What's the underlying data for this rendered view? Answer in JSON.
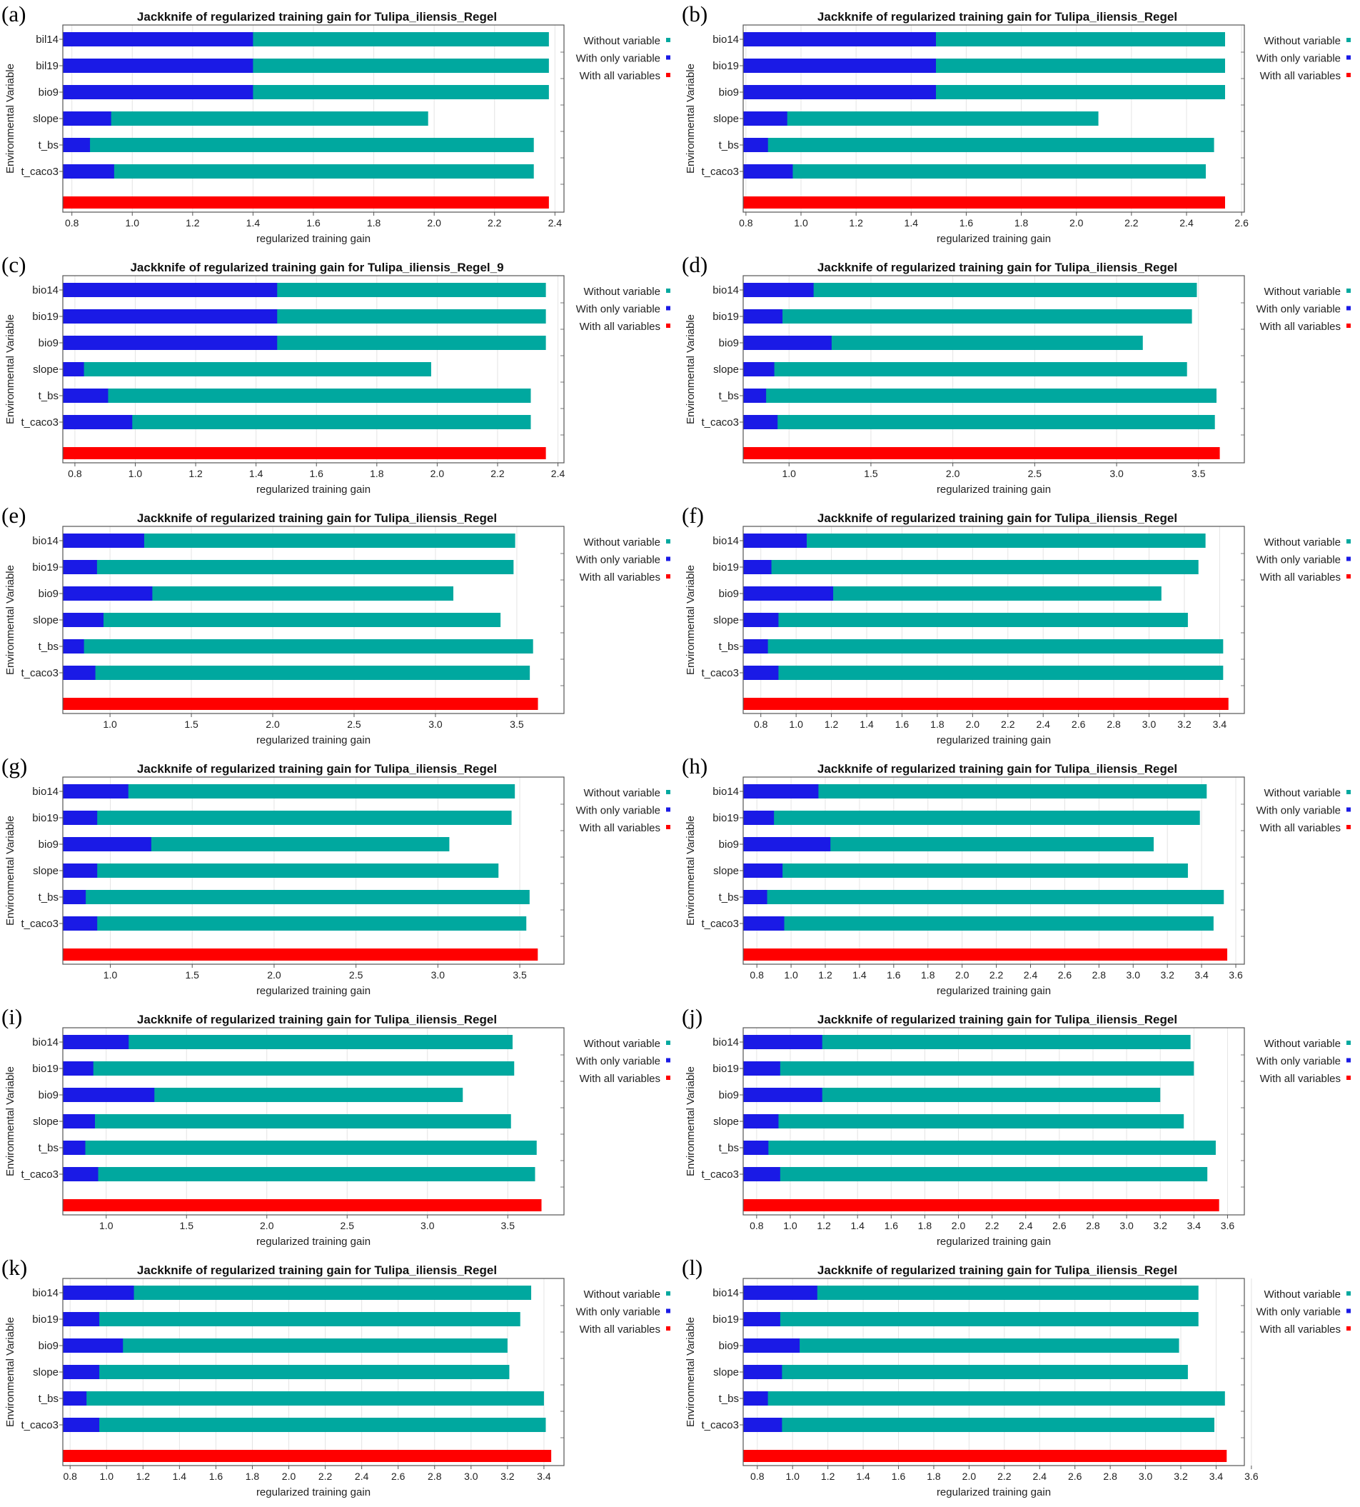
{
  "colors": {
    "without": "#00A89F",
    "only": "#1A1AE6",
    "all": "#FF0000",
    "frame": "#555555",
    "grid": "#E4E4E4"
  },
  "chart_data": [
    {
      "type": "bar",
      "panel_label": "(a)",
      "title": "Jackknife of regularized training gain for Tulipa_iliensis_Regel",
      "xlabel": "regularized training gain",
      "ylabel": "Environmental Variable",
      "categories": [
        "bil14",
        "bil19",
        "bio9",
        "slope",
        "t_bs",
        "t_caco3"
      ],
      "series": [
        {
          "name": "Without variable",
          "values": [
            2.38,
            2.38,
            2.38,
            1.98,
            2.33,
            2.33
          ]
        },
        {
          "name": "With only variable",
          "values": [
            1.4,
            1.4,
            1.4,
            0.93,
            0.86,
            0.94
          ]
        }
      ],
      "all_variables": 2.38,
      "xlim": [
        0.77,
        2.43
      ],
      "xticks": [
        "0.8",
        "1.0",
        "1.2",
        "1.4",
        "1.6",
        "1.8",
        "2.0",
        "2.2",
        "2.4"
      ],
      "legend": [
        "Without variable",
        "With only variable",
        "With all variables"
      ]
    },
    {
      "type": "bar",
      "panel_label": "(b)",
      "title": "Jackknife of regularized training gain for Tulipa_iliensis_Regel",
      "xlabel": "regularized training gain",
      "ylabel": "Environmental Variable",
      "categories": [
        "bio14",
        "bio19",
        "bio9",
        "slope",
        "t_bs",
        "t_caco3"
      ],
      "series": [
        {
          "name": "Without variable",
          "values": [
            2.54,
            2.54,
            2.54,
            2.08,
            2.5,
            2.47
          ]
        },
        {
          "name": "With only variable",
          "values": [
            1.49,
            1.49,
            1.49,
            0.95,
            0.88,
            0.97
          ]
        }
      ],
      "all_variables": 2.54,
      "xlim": [
        0.79,
        2.61
      ],
      "xticks": [
        "0.8",
        "1.0",
        "1.2",
        "1.4",
        "1.6",
        "1.8",
        "2.0",
        "2.2",
        "2.4",
        "2.6"
      ],
      "legend": [
        "Without variable",
        "With only variable",
        "With all variables"
      ]
    },
    {
      "type": "bar",
      "panel_label": "(c)",
      "title": "Jackknife of regularized training gain for Tulipa_iliensis_Regel_9",
      "xlabel": "regularized training gain",
      "ylabel": "Environmental Variable",
      "categories": [
        "bio14",
        "bio19",
        "bio9",
        "slope",
        "t_bs",
        "t_caco3"
      ],
      "series": [
        {
          "name": "Without variable",
          "values": [
            2.36,
            2.36,
            2.36,
            1.98,
            2.31,
            2.31
          ]
        },
        {
          "name": "With only variable",
          "values": [
            1.47,
            1.47,
            1.47,
            0.83,
            0.91,
            0.99
          ]
        }
      ],
      "all_variables": 2.36,
      "xlim": [
        0.76,
        2.42
      ],
      "xticks": [
        "0.8",
        "1.0",
        "1.2",
        "1.4",
        "1.6",
        "1.8",
        "2.0",
        "2.2",
        "2.4"
      ],
      "legend": [
        "Without variable",
        "With only variable",
        "With all variables"
      ]
    },
    {
      "type": "bar",
      "panel_label": "(d)",
      "title": "Jackknife of regularized training gain for Tulipa_iliensis_Regel",
      "xlabel": "regularized training gain",
      "ylabel": "Environmental Variable",
      "categories": [
        "bio14",
        "bio19",
        "bio9",
        "slope",
        "t_bs",
        "t_caco3"
      ],
      "series": [
        {
          "name": "Without variable",
          "values": [
            3.49,
            3.46,
            3.16,
            3.43,
            3.61,
            3.6
          ]
        },
        {
          "name": "With only variable",
          "values": [
            1.15,
            0.96,
            1.26,
            0.91,
            0.86,
            0.93
          ]
        }
      ],
      "all_variables": 3.63,
      "xlim": [
        0.72,
        3.78
      ],
      "xticks": [
        "1.0",
        "1.5",
        "2.0",
        "2.5",
        "3.0",
        "3.5"
      ],
      "legend": [
        "Without variable",
        "With only variable",
        "With all variables"
      ]
    },
    {
      "type": "bar",
      "panel_label": "(e)",
      "title": "Jackknife of regularized training gain for Tulipa_iliensis_Regel",
      "xlabel": "regularized training gain",
      "ylabel": "Environmental Variable",
      "categories": [
        "bio14",
        "bio19",
        "bio9",
        "slope",
        "t_bs",
        "t_caco3"
      ],
      "series": [
        {
          "name": "Without variable",
          "values": [
            3.49,
            3.48,
            3.11,
            3.4,
            3.6,
            3.58
          ]
        },
        {
          "name": "With only variable",
          "values": [
            1.21,
            0.92,
            1.26,
            0.96,
            0.84,
            0.91
          ]
        }
      ],
      "all_variables": 3.63,
      "xlim": [
        0.71,
        3.79
      ],
      "xticks": [
        "1.0",
        "1.5",
        "2.0",
        "2.5",
        "3.0",
        "3.5"
      ],
      "legend": [
        "Without variable",
        "With only variable",
        "With all variables"
      ]
    },
    {
      "type": "bar",
      "panel_label": "(f)",
      "title": "Jackknife of regularized training gain for Tulipa_iliensis_Regel",
      "xlabel": "regularized training gain",
      "ylabel": "Environmental Variable",
      "categories": [
        "bio14",
        "bio19",
        "bio9",
        "slope",
        "t_bs",
        "t_caco3"
      ],
      "series": [
        {
          "name": "Without variable",
          "values": [
            3.32,
            3.28,
            3.07,
            3.22,
            3.42,
            3.42
          ]
        },
        {
          "name": "With only variable",
          "values": [
            1.06,
            0.86,
            1.21,
            0.9,
            0.84,
            0.9
          ]
        }
      ],
      "all_variables": 3.45,
      "xlim": [
        0.7,
        3.54
      ],
      "xticks": [
        "0.8",
        "1.0",
        "1.2",
        "1.4",
        "1.6",
        "1.8",
        "2.0",
        "2.2",
        "2.4",
        "2.6",
        "2.8",
        "3.0",
        "3.2",
        "3.4"
      ],
      "legend": [
        "Without variable",
        "With only variable",
        "With all variables"
      ]
    },
    {
      "type": "bar",
      "panel_label": "(g)",
      "title": "Jackknife of regularized training gain for Tulipa_iliensis_Regel",
      "xlabel": "regularized training gain",
      "ylabel": "Environmental Variable",
      "categories": [
        "bio14",
        "bio19",
        "bio9",
        "slope",
        "t_bs",
        "t_caco3"
      ],
      "series": [
        {
          "name": "Without variable",
          "values": [
            3.47,
            3.45,
            3.07,
            3.37,
            3.56,
            3.54
          ]
        },
        {
          "name": "With only variable",
          "values": [
            1.11,
            0.92,
            1.25,
            0.92,
            0.85,
            0.92
          ]
        }
      ],
      "all_variables": 3.61,
      "xlim": [
        0.71,
        3.77
      ],
      "xticks": [
        "1.0",
        "1.5",
        "2.0",
        "2.5",
        "3.0",
        "3.5"
      ],
      "legend": [
        "Without variable",
        "With only variable",
        "With all variables"
      ]
    },
    {
      "type": "bar",
      "panel_label": "(h)",
      "title": "Jackknife of regularized training gain for Tulipa_iliensis_Regel",
      "xlabel": "regularized training gain",
      "ylabel": "Environmental Variable",
      "categories": [
        "bio14",
        "bio19",
        "bio9",
        "slope",
        "t_bs",
        "t_caco3"
      ],
      "series": [
        {
          "name": "Without variable",
          "values": [
            3.43,
            3.39,
            3.12,
            3.32,
            3.53,
            3.47
          ]
        },
        {
          "name": "With only variable",
          "values": [
            1.16,
            0.9,
            1.23,
            0.95,
            0.86,
            0.96
          ]
        }
      ],
      "all_variables": 3.55,
      "xlim": [
        0.72,
        3.65
      ],
      "xticks": [
        "0.8",
        "1.0",
        "1.2",
        "1.4",
        "1.6",
        "1.8",
        "2.0",
        "2.2",
        "2.4",
        "2.6",
        "2.8",
        "3.0",
        "3.2",
        "3.4",
        "3.6"
      ],
      "legend": [
        "Without variable",
        "With only variable",
        "With all variables"
      ]
    },
    {
      "type": "bar",
      "panel_label": "(i)",
      "title": "Jackknife of regularized training gain for Tulipa_iliensis_Regel",
      "xlabel": "regularized training gain",
      "ylabel": "Environmental Variable",
      "categories": [
        "bio14",
        "bio19",
        "bio9",
        "slope",
        "t_bs",
        "t_caco3"
      ],
      "series": [
        {
          "name": "Without variable",
          "values": [
            3.53,
            3.54,
            3.22,
            3.52,
            3.68,
            3.67
          ]
        },
        {
          "name": "With only variable",
          "values": [
            1.14,
            0.92,
            1.3,
            0.93,
            0.87,
            0.95
          ]
        }
      ],
      "all_variables": 3.71,
      "xlim": [
        0.73,
        3.85
      ],
      "xticks": [
        "1.0",
        "1.5",
        "2.0",
        "2.5",
        "3.0",
        "3.5"
      ],
      "legend": [
        "Without variable",
        "With only variable",
        "With all variables"
      ]
    },
    {
      "type": "bar",
      "panel_label": "(j)",
      "title": "Jackknife of regularized training gain for Tulipa_iliensis_Regel",
      "xlabel": "regularized training gain",
      "ylabel": "Environmental Variable",
      "categories": [
        "bio14",
        "bio19",
        "bio9",
        "slope",
        "t_bs",
        "t_caco3"
      ],
      "series": [
        {
          "name": "Without variable",
          "values": [
            3.38,
            3.4,
            3.2,
            3.34,
            3.53,
            3.48
          ]
        },
        {
          "name": "With only variable",
          "values": [
            1.19,
            0.94,
            1.19,
            0.93,
            0.87,
            0.94
          ]
        }
      ],
      "all_variables": 3.55,
      "xlim": [
        0.72,
        3.7
      ],
      "xticks": [
        "0.8",
        "1.0",
        "1.2",
        "1.4",
        "1.6",
        "1.8",
        "2.0",
        "2.2",
        "2.4",
        "2.6",
        "2.8",
        "3.0",
        "3.2",
        "3.4",
        "3.6"
      ],
      "legend": [
        "Without variable",
        "With only variable",
        "With all variables"
      ]
    },
    {
      "type": "bar",
      "panel_label": "(k)",
      "title": "Jackknife of regularized training gain for Tulipa_iliensis_Regel",
      "xlabel": "regularized training gain",
      "ylabel": "Environmental Variable",
      "categories": [
        "bio14",
        "bio19",
        "bio9",
        "slope",
        "t_bs",
        "t_caco3"
      ],
      "series": [
        {
          "name": "Without variable",
          "values": [
            3.33,
            3.27,
            3.2,
            3.21,
            3.4,
            3.41
          ]
        },
        {
          "name": "With only variable",
          "values": [
            1.15,
            0.96,
            1.09,
            0.96,
            0.89,
            0.96
          ]
        }
      ],
      "all_variables": 3.44,
      "xlim": [
        0.76,
        3.51
      ],
      "xticks": [
        "0.8",
        "1.0",
        "1.2",
        "1.4",
        "1.6",
        "1.8",
        "2.0",
        "2.2",
        "2.4",
        "2.6",
        "2.8",
        "3.0",
        "3.2",
        "3.4"
      ],
      "legend": [
        "Without variable",
        "With only variable",
        "With all variables"
      ]
    },
    {
      "type": "bar",
      "panel_label": "(l)",
      "title": "Jackknife of regularized training gain for Tulipa_iliensis_Regel",
      "xlabel": "regularized training gain",
      "ylabel": "Environmental Variable",
      "categories": [
        "bio14",
        "bio19",
        "bio9",
        "slope",
        "t_bs",
        "t_caco3"
      ],
      "series": [
        {
          "name": "Without variable",
          "values": [
            3.3,
            3.3,
            3.19,
            3.24,
            3.45,
            3.39
          ]
        },
        {
          "name": "With only variable",
          "values": [
            1.14,
            0.93,
            1.04,
            0.94,
            0.86,
            0.94
          ]
        }
      ],
      "all_variables": 3.46,
      "xlim": [
        0.72,
        3.56
      ],
      "xticks": [
        "0.8",
        "1.0",
        "1.2",
        "1.4",
        "1.6",
        "1.8",
        "2.0",
        "2.2",
        "2.4",
        "2.6",
        "2.8",
        "3.0",
        "3.2",
        "3.4",
        "3.6"
      ],
      "legend": [
        "Without variable",
        "With only variable",
        "With all variables"
      ]
    }
  ]
}
